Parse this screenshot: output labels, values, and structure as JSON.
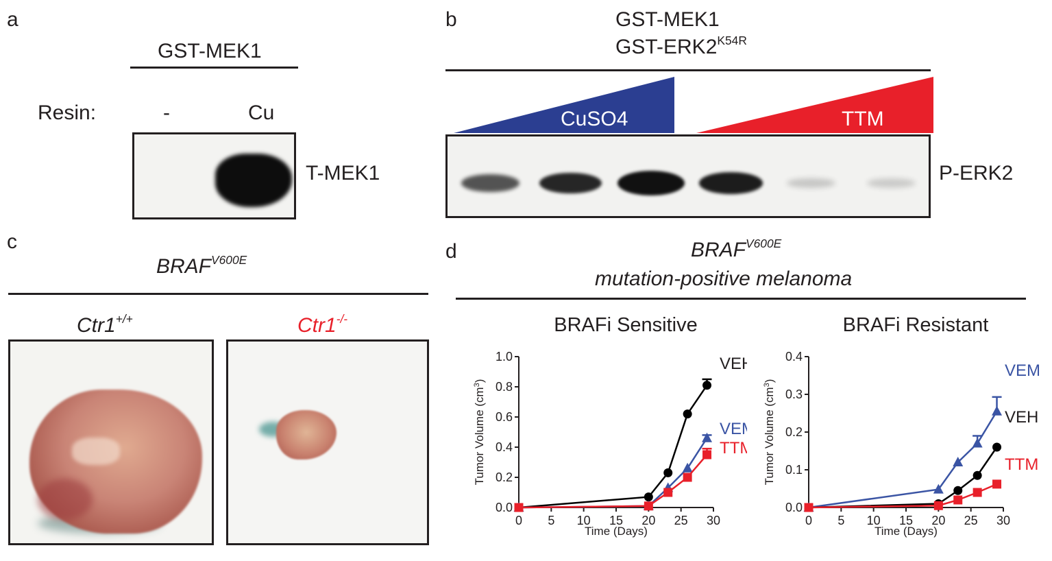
{
  "panel_a": {
    "label": "a",
    "header": "GST-MEK1",
    "row_label": "Resin:",
    "lanes": [
      "-",
      "Cu"
    ],
    "blot_label": "T-MEK1"
  },
  "panel_b": {
    "label": "b",
    "header_line1": "GST-MEK1",
    "header_line2": "GST-ERK2",
    "header_line2_sup": "K54R",
    "wedge_left": "CuSO4",
    "wedge_right": "TTM",
    "blot_label": "P-ERK2",
    "colors": {
      "blue": "#2b3e91",
      "red": "#e8202a"
    },
    "band_intensities": [
      0.55,
      0.75,
      1.0,
      0.8,
      0.04,
      0.02
    ]
  },
  "panel_c": {
    "label": "c",
    "title": "BRAF",
    "title_sup": "V600E",
    "left_label": "Ctr1",
    "left_sup": "+/+",
    "right_label": "Ctr1",
    "right_sup": "-/-",
    "right_color": "#e8202a"
  },
  "panel_d": {
    "label": "d",
    "title": "BRAF",
    "title_sup": "V600E",
    "subtitle": "mutation-positive melanoma"
  },
  "chart_data": [
    {
      "type": "line",
      "title": "BRAFi Sensitive",
      "xlabel": "Time (Days)",
      "ylabel": "Tumor Volume (cm",
      "ylabel_sup": "3",
      "ylabel_end": ")",
      "xlim": [
        0,
        30
      ],
      "ylim": [
        0,
        1.0
      ],
      "xticks": [
        "0",
        "5",
        "10",
        "15",
        "20",
        "25",
        "30"
      ],
      "yticks": [
        "0.0",
        "0.2",
        "0.4",
        "0.6",
        "0.8",
        "1.0"
      ],
      "series": [
        {
          "name": "VEH",
          "color": "#000000",
          "marker": "circle",
          "x": [
            0,
            20,
            23,
            26,
            29
          ],
          "y": [
            0.0,
            0.07,
            0.23,
            0.62,
            0.81
          ],
          "err": [
            0,
            0,
            0,
            0,
            0.04
          ]
        },
        {
          "name": "VEM",
          "color": "#3a54a4",
          "marker": "triangle",
          "x": [
            0,
            20,
            23,
            26,
            29
          ],
          "y": [
            0.0,
            0.01,
            0.13,
            0.26,
            0.46
          ],
          "err": [
            0,
            0,
            0,
            0,
            0.02
          ]
        },
        {
          "name": "TTM",
          "color": "#e8202a",
          "marker": "square",
          "x": [
            0,
            20,
            23,
            26,
            29
          ],
          "y": [
            0.0,
            0.01,
            0.1,
            0.2,
            0.35
          ],
          "err": [
            0,
            0,
            0,
            0,
            0.04
          ]
        }
      ]
    },
    {
      "type": "line",
      "title": "BRAFi Resistant",
      "xlabel": "Time (Days)",
      "ylabel": "Tumor Volume (cm",
      "ylabel_sup": "3",
      "ylabel_end": ")",
      "xlim": [
        0,
        30
      ],
      "ylim": [
        0,
        0.4
      ],
      "xticks": [
        "0",
        "5",
        "10",
        "15",
        "20",
        "25",
        "30"
      ],
      "yticks": [
        "0.0",
        "0.1",
        "0.2",
        "0.3",
        "0.4"
      ],
      "series": [
        {
          "name": "VEM",
          "color": "#3a54a4",
          "marker": "triangle",
          "x": [
            0,
            20,
            23,
            26,
            29
          ],
          "y": [
            0.0,
            0.048,
            0.12,
            0.17,
            0.255
          ],
          "err": [
            0,
            0,
            0,
            0.02,
            0.038
          ]
        },
        {
          "name": "VEH",
          "color": "#000000",
          "marker": "circle",
          "x": [
            0,
            20,
            23,
            26,
            29
          ],
          "y": [
            0.0,
            0.01,
            0.045,
            0.085,
            0.16
          ],
          "err": [
            0,
            0,
            0,
            0,
            0
          ]
        },
        {
          "name": "TTM",
          "color": "#e8202a",
          "marker": "square",
          "x": [
            0,
            20,
            23,
            26,
            29
          ],
          "y": [
            0.0,
            0.005,
            0.02,
            0.04,
            0.062
          ],
          "err": [
            0,
            0,
            0,
            0,
            0
          ]
        }
      ]
    }
  ]
}
